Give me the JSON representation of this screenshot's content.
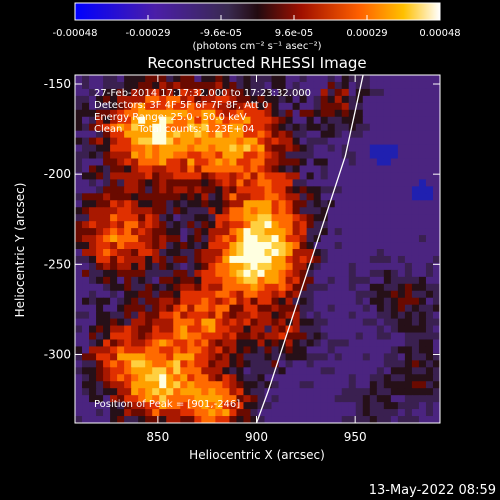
{
  "chart_data": {
    "type": "heatmap",
    "colorbar": {
      "ticks": [
        "-0.00048",
        "-0.00029",
        "-9.6e-05",
        "9.6e-05",
        "0.00029",
        "0.00048"
      ],
      "range": [
        -0.00048,
        0.00048
      ],
      "units_label": "(photons cm⁻² s⁻¹ asec⁻²)",
      "colors": [
        "#0000c8",
        "#5a1e96",
        "#2a1014",
        "#a01000",
        "#ff6a00",
        "#fffff0"
      ]
    },
    "title": "Reconstructed RHESSI Image",
    "xlabel": "Heliocentric X (arcsec)",
    "ylabel": "Heliocentric Y (arcsec)",
    "xlim": [
      808,
      993
    ],
    "ylim": [
      -338,
      -145
    ],
    "xticks": [
      850,
      900,
      950
    ],
    "yticks": [
      -150,
      -200,
      -250,
      -300
    ],
    "annotations": [
      "27-Feb-2014 17:17:32.000 to 17:23:32.000",
      "Detectors: 3F 4F 5F 6F 7F 8F, Att 0",
      "Energy Range: 25.0 - 50.0 keV",
      "Clean     Total counts: 1.23E+04"
    ],
    "peak_label": "Position of Peak = [901,-246]",
    "peak": [
      901,
      -246
    ],
    "limb_curve": [
      [
        954,
        -145
      ],
      [
        945,
        -190
      ],
      [
        930,
        -240
      ],
      [
        918,
        -280
      ],
      [
        906,
        -320
      ],
      [
        900,
        -338
      ]
    ],
    "timestamp": "13-May-2022 08:59"
  }
}
